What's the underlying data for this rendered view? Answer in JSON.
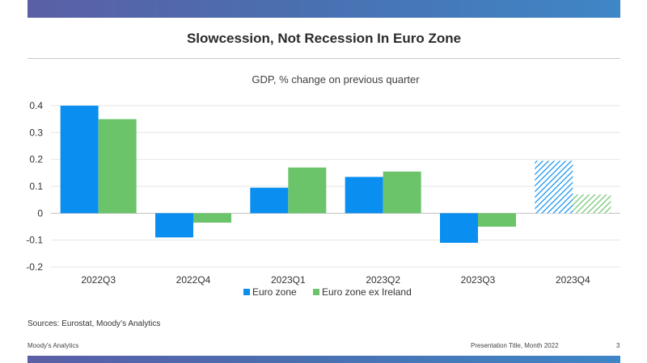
{
  "header": {
    "title": "Slowcession, Not Recession In Euro Zone"
  },
  "chart_data": {
    "type": "bar",
    "title": "GDP, % change on previous quarter",
    "xlabel": "",
    "ylabel": "",
    "categories": [
      "2022Q3",
      "2022Q4",
      "2023Q1",
      "2023Q2",
      "2023Q3",
      "2023Q4"
    ],
    "series": [
      {
        "name": "Euro zone",
        "color": "#0a8ef0",
        "values": [
          0.4,
          -0.09,
          0.095,
          0.135,
          -0.11,
          0.195
        ]
      },
      {
        "name": "Euro zone ex Ireland",
        "color": "#6cc46a",
        "values": [
          0.35,
          -0.035,
          0.17,
          0.155,
          -0.05,
          0.07
        ]
      }
    ],
    "forecast_categories": [
      "2023Q4"
    ],
    "ylim": [
      -0.2,
      0.4
    ],
    "yticks": [
      -0.2,
      -0.1,
      0,
      0.1,
      0.2,
      0.3,
      0.4
    ],
    "ytick_labels": [
      "-0.2",
      "-0.1",
      "0",
      "0.1",
      "0.2",
      "0.3",
      "0.4"
    ],
    "grid": true,
    "legend_position": "bottom"
  },
  "footer": {
    "source": "Sources: Eurostat, Moody’s Analytics",
    "left": "Moody's Analytics",
    "right": "Presentation Title, Month 2022",
    "page": "3"
  }
}
